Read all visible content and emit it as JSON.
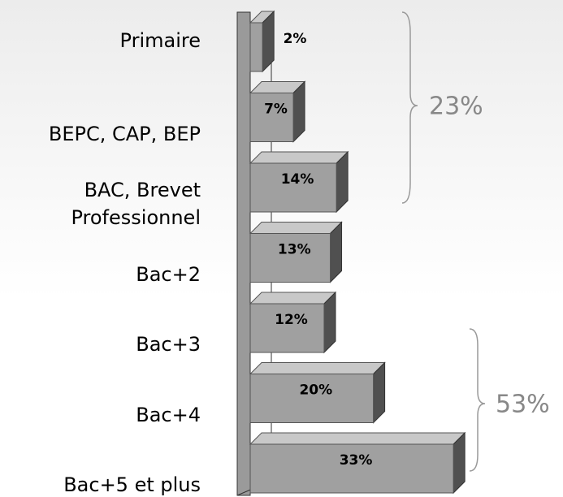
{
  "chart_data": {
    "type": "bar",
    "orientation": "horizontal",
    "categories": [
      "Primaire",
      "BEPC, CAP, BEP",
      "BAC, Brevet\nProfessionnel",
      "Bac+2",
      "Bac+3",
      "Bac+4",
      "Bac+5 et plus"
    ],
    "values": [
      2,
      7,
      14,
      13,
      12,
      20,
      33
    ],
    "value_labels": [
      "2%",
      "7%",
      "14%",
      "13%",
      "12%",
      "20%",
      "33%"
    ],
    "color": "#a0a0a0",
    "annotations": [
      {
        "text": "23%"
      },
      {
        "text": "53%"
      }
    ]
  }
}
